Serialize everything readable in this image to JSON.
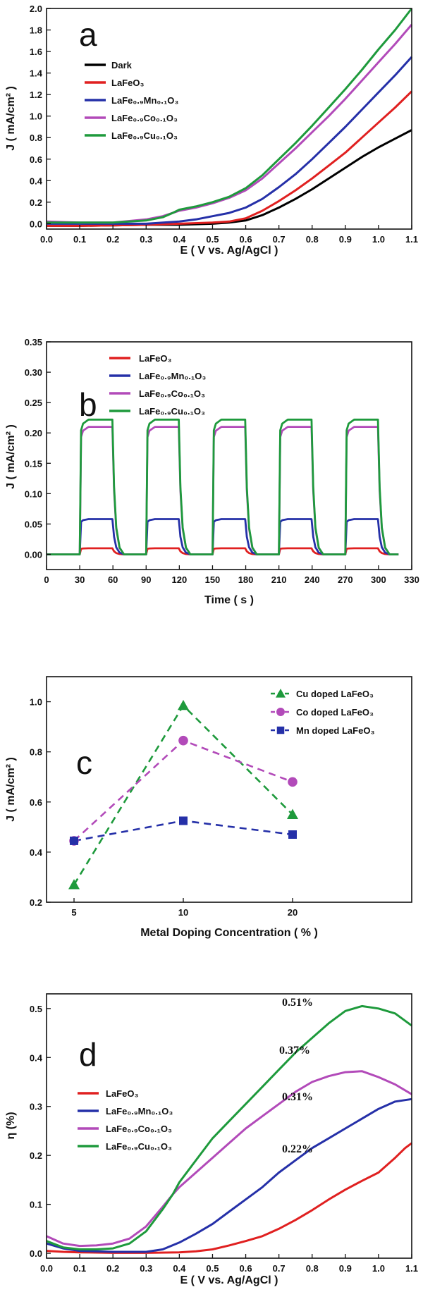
{
  "chart_data": [
    {
      "type": "line",
      "panel_letter": "a",
      "xlabel": "E ( V vs. Ag/AgCl )",
      "ylabel": "J ( mA/cm² )",
      "xlim": [
        0,
        1.1
      ],
      "ylim": [
        -0.05,
        2.0
      ],
      "x_ticks": [
        "0.0",
        "0.1",
        "0.2",
        "0.3",
        "0.4",
        "0.5",
        "0.6",
        "0.7",
        "0.8",
        "0.9",
        "1.0",
        "1.1"
      ],
      "y_ticks": [
        "0.0",
        "0.2",
        "0.4",
        "0.6",
        "0.8",
        "1.0",
        "1.2",
        "1.4",
        "1.6",
        "1.8",
        "2.0"
      ],
      "legend_position": "upper-left",
      "series": [
        {
          "name": "Dark",
          "color": "#000000",
          "x": [
            0,
            0.1,
            0.2,
            0.3,
            0.4,
            0.5,
            0.55,
            0.6,
            0.65,
            0.7,
            0.75,
            0.8,
            0.85,
            0.9,
            0.95,
            1.0,
            1.05,
            1.1
          ],
          "y": [
            -0.02,
            -0.02,
            -0.015,
            -0.01,
            -0.01,
            0.0,
            0.01,
            0.03,
            0.08,
            0.15,
            0.23,
            0.32,
            0.42,
            0.52,
            0.62,
            0.71,
            0.79,
            0.87
          ]
        },
        {
          "name": "LaFeO₃",
          "color": "#e02020",
          "x": [
            0,
            0.1,
            0.2,
            0.3,
            0.4,
            0.5,
            0.55,
            0.6,
            0.65,
            0.7,
            0.75,
            0.8,
            0.85,
            0.9,
            0.95,
            1.0,
            1.05,
            1.1
          ],
          "y": [
            -0.02,
            -0.02,
            -0.015,
            -0.01,
            0.0,
            0.01,
            0.02,
            0.05,
            0.12,
            0.21,
            0.31,
            0.42,
            0.54,
            0.66,
            0.8,
            0.94,
            1.08,
            1.23
          ]
        },
        {
          "name": "LaFe₀.₉Mn₀.₁O₃",
          "color": "#2530a8",
          "x": [
            0,
            0.1,
            0.2,
            0.3,
            0.4,
            0.45,
            0.5,
            0.55,
            0.6,
            0.65,
            0.7,
            0.75,
            0.8,
            0.85,
            0.9,
            0.95,
            1.0,
            1.05,
            1.1
          ],
          "y": [
            0.0,
            0.0,
            0.0,
            0.0,
            0.02,
            0.04,
            0.07,
            0.1,
            0.15,
            0.23,
            0.34,
            0.46,
            0.6,
            0.75,
            0.9,
            1.06,
            1.22,
            1.38,
            1.55
          ]
        },
        {
          "name": "LaFe₀.₉Co₀.₁O₃",
          "color": "#b24ab9",
          "x": [
            0,
            0.1,
            0.2,
            0.3,
            0.35,
            0.38,
            0.4,
            0.45,
            0.5,
            0.55,
            0.6,
            0.65,
            0.7,
            0.75,
            0.8,
            0.85,
            0.9,
            0.95,
            1.0,
            1.05,
            1.1
          ],
          "y": [
            0.02,
            0.01,
            0.01,
            0.04,
            0.07,
            0.1,
            0.12,
            0.15,
            0.19,
            0.24,
            0.31,
            0.42,
            0.56,
            0.7,
            0.85,
            1.0,
            1.16,
            1.33,
            1.5,
            1.67,
            1.85
          ]
        },
        {
          "name": "LaFe₀.₉Cu₀.₁O₃",
          "color": "#1e9a3c",
          "x": [
            0,
            0.1,
            0.2,
            0.3,
            0.35,
            0.38,
            0.4,
            0.45,
            0.5,
            0.55,
            0.6,
            0.65,
            0.7,
            0.75,
            0.8,
            0.85,
            0.9,
            0.95,
            1.0,
            1.05,
            1.1
          ],
          "y": [
            0.01,
            0.01,
            0.01,
            0.03,
            0.06,
            0.1,
            0.13,
            0.16,
            0.2,
            0.25,
            0.33,
            0.45,
            0.6,
            0.75,
            0.91,
            1.08,
            1.25,
            1.43,
            1.62,
            1.8,
            2.0
          ]
        }
      ]
    },
    {
      "type": "line",
      "panel_letter": "b",
      "xlabel": "Time ( s )",
      "ylabel": "J ( mA/cm² )",
      "xlim": [
        0,
        330
      ],
      "ylim": [
        -0.025,
        0.35
      ],
      "x_ticks": [
        "0",
        "30",
        "60",
        "90",
        "120",
        "150",
        "180",
        "210",
        "240",
        "270",
        "300",
        "330"
      ],
      "y_ticks": [
        "0.00",
        "0.05",
        "0.10",
        "0.15",
        "0.20",
        "0.25",
        "0.30",
        "0.35"
      ],
      "legend_position": "top",
      "light_on_times": [
        30,
        90,
        150,
        210,
        270
      ],
      "light_off_times": [
        60,
        120,
        180,
        240,
        300
      ],
      "series": [
        {
          "name": "LaFeO₃",
          "color": "#e02020",
          "on_level": 0.01
        },
        {
          "name": "LaFe₀.₉Mn₀.₁O₃",
          "color": "#2530a8",
          "on_level": 0.058
        },
        {
          "name": "LaFe₀.₉Co₀.₁O₃",
          "color": "#b24ab9",
          "on_level": 0.21
        },
        {
          "name": "LaFe₀.₉Cu₀.₁O₃",
          "color": "#1e9a3c",
          "on_level": 0.222
        }
      ]
    },
    {
      "type": "scatter",
      "panel_letter": "c",
      "xlabel": "Metal Doping Concentration ( % )",
      "ylabel": "J ( mA/cm² )",
      "categories": [
        "5",
        "10",
        "20"
      ],
      "ylim": [
        0.2,
        1.1
      ],
      "y_ticks": [
        "0.2",
        "0.4",
        "0.6",
        "0.8",
        "1.0"
      ],
      "legend_position": "top-right",
      "series": [
        {
          "name": "Cu doped LaFeO₃",
          "color": "#1e9a3c",
          "marker": "triangle",
          "values": [
            0.27,
            0.985,
            0.55
          ]
        },
        {
          "name": "Co doped LaFeO₃",
          "color": "#b24ab9",
          "marker": "circle",
          "values": [
            0.445,
            0.845,
            0.68
          ]
        },
        {
          "name": "Mn doped LaFeO₃",
          "color": "#2530a8",
          "marker": "square",
          "values": [
            0.445,
            0.525,
            0.47
          ]
        }
      ]
    },
    {
      "type": "line",
      "panel_letter": "d",
      "xlabel": "E ( V vs. Ag/AgCl )",
      "ylabel": "η (%)",
      "xlim": [
        0,
        1.1
      ],
      "ylim": [
        -0.01,
        0.53
      ],
      "x_ticks": [
        "0.0",
        "0.1",
        "0.2",
        "0.3",
        "0.4",
        "0.5",
        "0.6",
        "0.7",
        "0.8",
        "0.9",
        "1.0",
        "1.1"
      ],
      "y_ticks": [
        "0.0",
        "0.1",
        "0.2",
        "0.3",
        "0.4",
        "0.5"
      ],
      "legend_position": "middle-left",
      "annotations": [
        "0.51%",
        "0.37%",
        "0.31%",
        "0.22%"
      ],
      "series": [
        {
          "name": "LaFeO₃",
          "color": "#e02020",
          "x": [
            0,
            0.05,
            0.1,
            0.2,
            0.3,
            0.4,
            0.45,
            0.5,
            0.55,
            0.6,
            0.65,
            0.7,
            0.75,
            0.8,
            0.85,
            0.9,
            0.95,
            1.0,
            1.05,
            1.08,
            1.1
          ],
          "y": [
            0.005,
            0.003,
            0.002,
            0.001,
            0.001,
            0.002,
            0.004,
            0.008,
            0.016,
            0.025,
            0.035,
            0.05,
            0.068,
            0.088,
            0.11,
            0.13,
            0.148,
            0.165,
            0.195,
            0.215,
            0.225
          ]
        },
        {
          "name": "LaFe₀.₉Mn₀.₁O₃",
          "color": "#2530a8",
          "x": [
            0,
            0.05,
            0.1,
            0.2,
            0.3,
            0.35,
            0.4,
            0.45,
            0.5,
            0.55,
            0.6,
            0.65,
            0.7,
            0.75,
            0.8,
            0.85,
            0.9,
            0.95,
            1.0,
            1.05,
            1.1
          ],
          "y": [
            0.02,
            0.01,
            0.005,
            0.003,
            0.003,
            0.008,
            0.022,
            0.04,
            0.06,
            0.085,
            0.11,
            0.135,
            0.165,
            0.19,
            0.215,
            0.235,
            0.255,
            0.275,
            0.295,
            0.31,
            0.315
          ]
        },
        {
          "name": "LaFe₀.₉Co₀.₁O₃",
          "color": "#b24ab9",
          "x": [
            0,
            0.05,
            0.1,
            0.15,
            0.2,
            0.25,
            0.3,
            0.35,
            0.38,
            0.4,
            0.45,
            0.5,
            0.55,
            0.6,
            0.65,
            0.7,
            0.75,
            0.8,
            0.85,
            0.9,
            0.95,
            1.0,
            1.05,
            1.1
          ],
          "y": [
            0.035,
            0.02,
            0.015,
            0.016,
            0.02,
            0.03,
            0.055,
            0.095,
            0.12,
            0.135,
            0.165,
            0.195,
            0.225,
            0.255,
            0.28,
            0.305,
            0.33,
            0.35,
            0.362,
            0.37,
            0.372,
            0.36,
            0.345,
            0.325
          ]
        },
        {
          "name": "LaFe₀.₉Cu₀.₁O₃",
          "color": "#1e9a3c",
          "x": [
            0,
            0.05,
            0.1,
            0.15,
            0.2,
            0.25,
            0.3,
            0.35,
            0.38,
            0.4,
            0.45,
            0.5,
            0.55,
            0.6,
            0.65,
            0.7,
            0.75,
            0.8,
            0.85,
            0.9,
            0.95,
            1.0,
            1.05,
            1.1
          ],
          "y": [
            0.025,
            0.012,
            0.008,
            0.008,
            0.01,
            0.02,
            0.045,
            0.09,
            0.12,
            0.145,
            0.19,
            0.235,
            0.27,
            0.305,
            0.34,
            0.375,
            0.41,
            0.44,
            0.47,
            0.495,
            0.505,
            0.5,
            0.49,
            0.465
          ]
        }
      ]
    }
  ]
}
